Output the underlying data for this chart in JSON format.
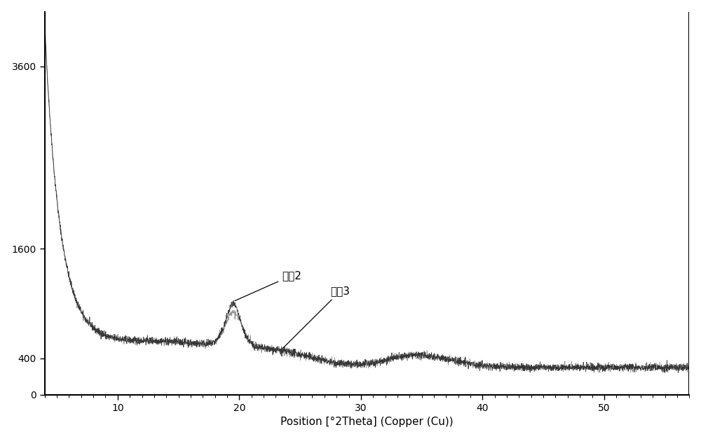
{
  "xlabel": "Position [°2Theta] (Copper (Cu))",
  "ylabel": "",
  "xlim": [
    4,
    57
  ],
  "ylim": [
    0,
    4200
  ],
  "yticks": [
    0,
    400,
    1600,
    3600
  ],
  "xticks": [
    10,
    20,
    30,
    40,
    50
  ],
  "label2": "样哆2",
  "label3": "样哆3",
  "color2": "#2a2a2a",
  "color3": "#888888",
  "background_color": "#ffffff",
  "seed2": 42,
  "seed3": 99,
  "noise_amp": 20
}
